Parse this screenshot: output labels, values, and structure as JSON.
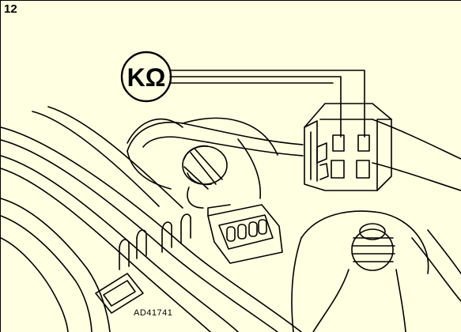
{
  "figure": {
    "number": "12",
    "reference_code": "AD41741",
    "meter_label": "KΩ",
    "line_color": "#000000",
    "background_color": "#ffffe1"
  }
}
